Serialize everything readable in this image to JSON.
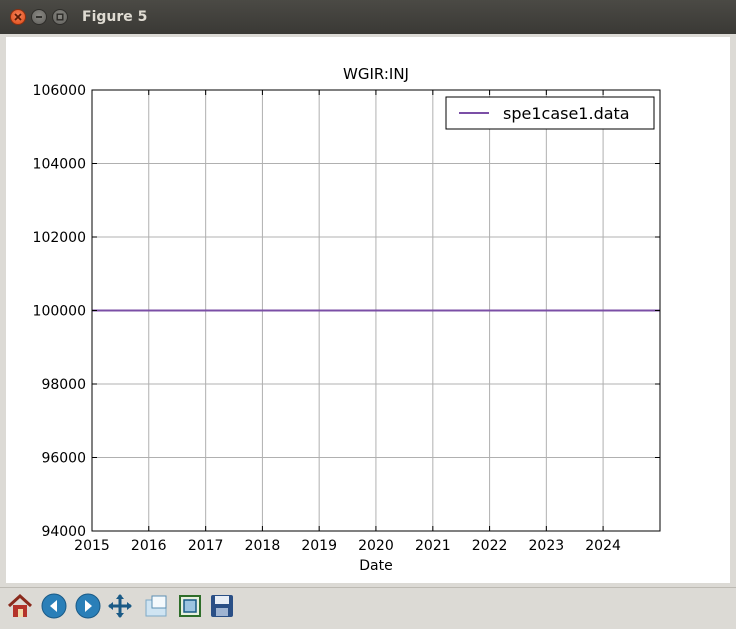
{
  "window": {
    "title": "Figure 5"
  },
  "toolbar": {
    "buttons": [
      {
        "icon": "home-icon"
      },
      {
        "icon": "back-icon"
      },
      {
        "icon": "forward-icon"
      },
      {
        "icon": "pan-icon"
      },
      {
        "icon": "zoom-icon"
      },
      {
        "icon": "subplots-icon"
      },
      {
        "icon": "save-icon"
      }
    ]
  },
  "chart_data": {
    "type": "line",
    "title": "WGIR:INJ",
    "xlabel": "Date",
    "ylabel": "",
    "x_ticks": [
      "2015",
      "2016",
      "2017",
      "2018",
      "2019",
      "2020",
      "2021",
      "2022",
      "2023",
      "2024"
    ],
    "y_ticks": [
      "94000",
      "96000",
      "98000",
      "100000",
      "102000",
      "104000",
      "106000"
    ],
    "xlim": [
      "2015-01-01",
      "2025-01-01"
    ],
    "ylim": [
      94000,
      106000
    ],
    "grid": true,
    "legend_position": "top-right",
    "series": [
      {
        "name": "spe1case1.data",
        "color": "#7b4fa6",
        "x": [
          "2015-01-01",
          "2025-01-01"
        ],
        "y": [
          100000,
          100000
        ]
      }
    ]
  }
}
